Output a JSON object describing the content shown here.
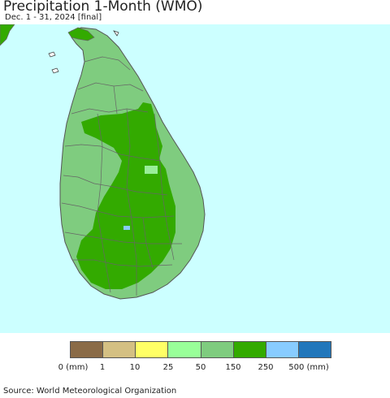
{
  "header": {
    "title": "Precipitation 1-Month (WMO)",
    "subtitle": "Dec. 1 - 31, 2024 [final]"
  },
  "map": {
    "ocean_color": "#ccffff",
    "land_colors": {
      "light": "#7fcc7f",
      "dark": "#33aa00",
      "pale": "#99ee99"
    },
    "border_color": "#666666"
  },
  "legend": {
    "colors": [
      "#8a6b47",
      "#d4c083",
      "#ffff66",
      "#99ff99",
      "#7fcc7f",
      "#33aa00",
      "#88ccff",
      "#2277bb"
    ],
    "labels": [
      "0 (mm)",
      "1",
      "10",
      "25",
      "50",
      "150",
      "250",
      "500 (mm)"
    ]
  },
  "footer": {
    "source": "Source: World Meteorological Organization"
  }
}
